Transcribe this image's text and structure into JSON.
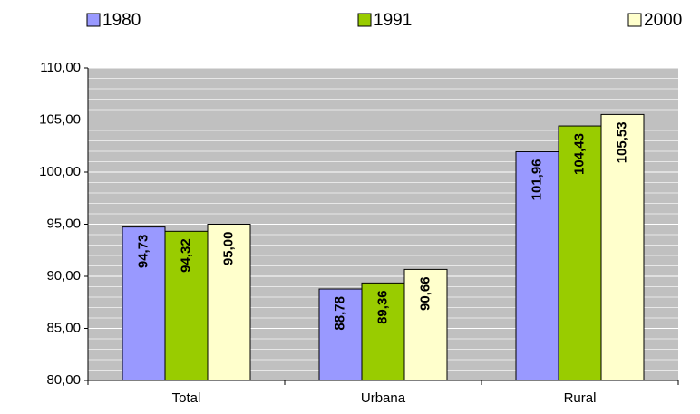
{
  "chart_data": {
    "type": "bar",
    "categories": [
      "Total",
      "Urbana",
      "Rural"
    ],
    "series": [
      {
        "name": "1980",
        "color": "#9999ff",
        "values": [
          94.73,
          88.78,
          101.96
        ],
        "value_labels": [
          "94,73",
          "88,78",
          "101,96"
        ]
      },
      {
        "name": "1991",
        "color": "#99cc00",
        "values": [
          94.32,
          89.36,
          104.43
        ],
        "value_labels": [
          "94,32",
          "89,36",
          "104,43"
        ]
      },
      {
        "name": "2000",
        "color": "#ffffcc",
        "values": [
          95.0,
          90.66,
          105.53
        ],
        "value_labels": [
          "95,00",
          "90,66",
          "105,53"
        ]
      }
    ],
    "ylim": [
      80,
      110
    ],
    "yticks": [
      {
        "value": 80,
        "label": "80,00"
      },
      {
        "value": 85,
        "label": "85,00"
      },
      {
        "value": 90,
        "label": "90,00"
      },
      {
        "value": 95,
        "label": "95,00"
      },
      {
        "value": 100,
        "label": "100,00"
      },
      {
        "value": 105,
        "label": "105,00"
      },
      {
        "value": 110,
        "label": "110,00"
      }
    ],
    "grid": true,
    "legend": "top"
  }
}
